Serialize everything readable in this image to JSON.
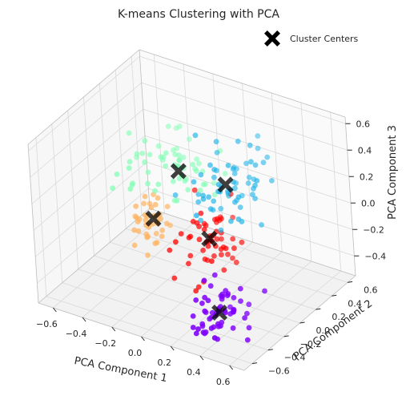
{
  "chart_data": {
    "type": "scatter",
    "projection": "3d",
    "title": "K-means Clustering with PCA",
    "xlabel": "PCA Component 1",
    "ylabel": "PCA Component 2",
    "zlabel": "PCA Component 3",
    "xlim": [
      -0.7,
      0.7
    ],
    "ylim": [
      -0.7,
      0.7
    ],
    "zlim": [
      -0.55,
      0.65
    ],
    "xticks": [
      -0.6,
      -0.4,
      -0.2,
      0.0,
      0.2,
      0.4,
      0.6
    ],
    "yticks": [
      -0.6,
      -0.4,
      -0.2,
      0.0,
      0.2,
      0.4,
      0.6
    ],
    "zticks": [
      -0.4,
      -0.2,
      0.0,
      0.2,
      0.4,
      0.6
    ],
    "xtick_labels": [
      "−0.6",
      "−0.4",
      "−0.2",
      "0.0",
      "0.2",
      "0.4",
      "0.6"
    ],
    "ytick_labels": [
      "−0.6",
      "−0.4",
      "−0.2",
      "0.0",
      "0.2",
      "0.4",
      "0.6"
    ],
    "ztick_labels": [
      "−0.4",
      "−0.2",
      "0.0",
      "0.2",
      "0.4",
      "0.6"
    ],
    "grid": true,
    "legend": {
      "placement": "top-right",
      "entries": [
        "Cluster Centers"
      ]
    },
    "clusters": [
      {
        "color": "#8000ff",
        "center": [
          0.35,
          -0.35,
          -0.42
        ],
        "spread": [
          0.08,
          0.12,
          0.12
        ],
        "count": 60,
        "seed": 11
      },
      {
        "color": "#1eb4e8",
        "center": [
          0.1,
          0.25,
          0.15
        ],
        "spread": [
          0.12,
          0.14,
          0.14
        ],
        "count": 65,
        "seed": 23
      },
      {
        "color": "#80ffb4",
        "center": [
          -0.25,
          0.3,
          0.1
        ],
        "spread": [
          0.16,
          0.16,
          0.08
        ],
        "count": 60,
        "seed": 37
      },
      {
        "color": "#ffb360",
        "center": [
          -0.3,
          0.05,
          -0.15
        ],
        "spread": [
          0.05,
          0.08,
          0.1
        ],
        "count": 40,
        "seed": 41
      },
      {
        "color": "#ff0000",
        "center": [
          0.05,
          0.1,
          -0.2
        ],
        "spread": [
          0.1,
          0.16,
          0.12
        ],
        "count": 55,
        "seed": 53
      }
    ],
    "cluster_centers": [
      {
        "x": 0.35,
        "y": -0.35,
        "z": -0.42
      },
      {
        "x": 0.1,
        "y": 0.25,
        "z": 0.15
      },
      {
        "x": -0.25,
        "y": 0.3,
        "z": 0.1
      },
      {
        "x": -0.3,
        "y": 0.05,
        "z": -0.15
      },
      {
        "x": 0.05,
        "y": 0.1,
        "z": -0.2
      }
    ],
    "center_marker": {
      "shape": "X",
      "color": "#000000",
      "opacity": 0.75
    }
  }
}
